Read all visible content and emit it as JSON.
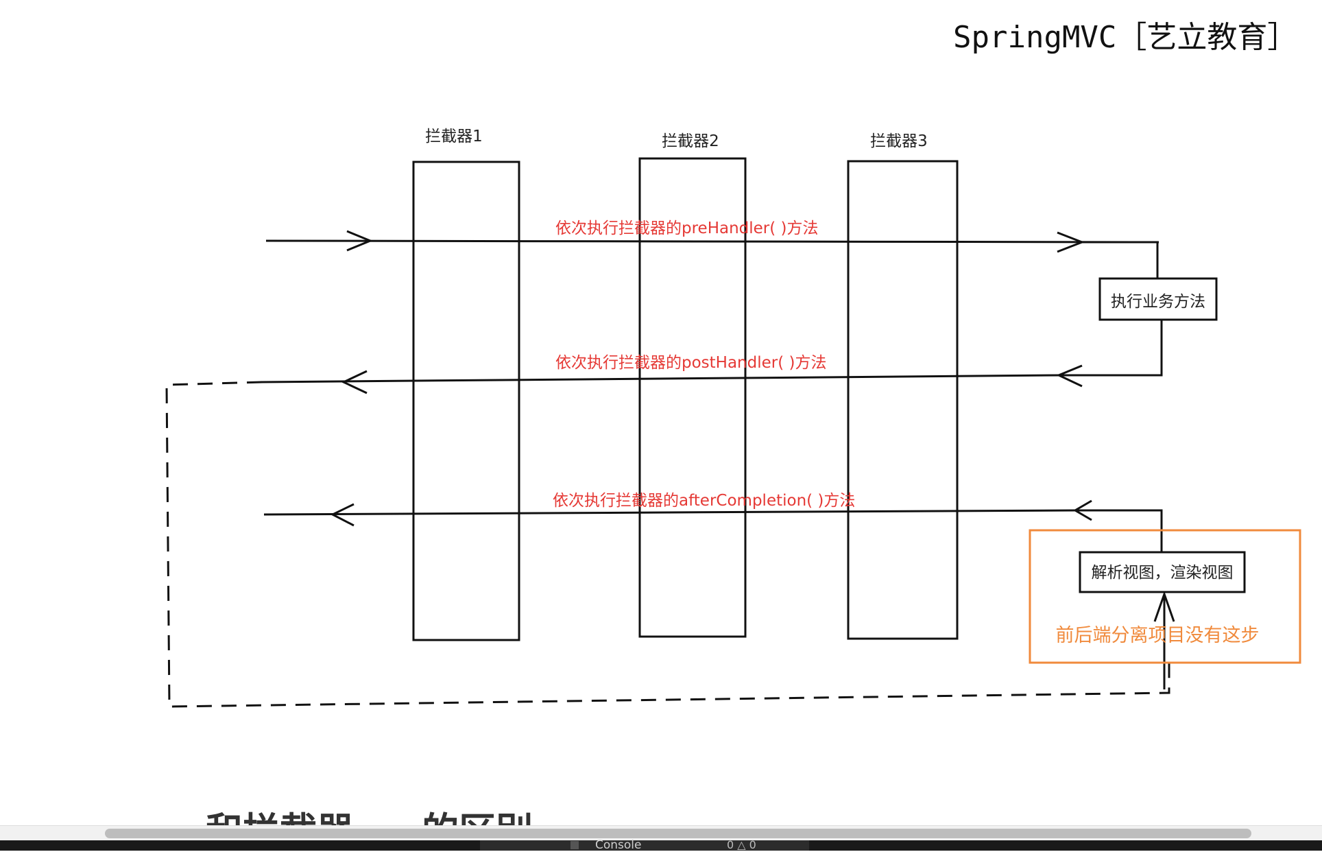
{
  "header": {
    "title": "SpringMVC［艺立教育］"
  },
  "interceptors": [
    {
      "label": "拦截器1"
    },
    {
      "label": "拦截器2"
    },
    {
      "label": "拦截器3"
    }
  ],
  "flows": {
    "pre": "依次执行拦截器的preHandler( )方法",
    "post": "依次执行拦截器的postHandler( )方法",
    "after": "依次执行拦截器的afterCompletion( )方法"
  },
  "boxes": {
    "business": "执行业务方法",
    "render": "解析视图，渲染视图",
    "note": "前后端分离项目没有这步"
  },
  "colors": {
    "flow_text": "#e53935",
    "highlight": "#f08a3c",
    "line": "#111111"
  },
  "bottom": {
    "partial_heading": "和拦截器 ... 的区别",
    "console_label": "Console",
    "status": "0 △ 0"
  }
}
